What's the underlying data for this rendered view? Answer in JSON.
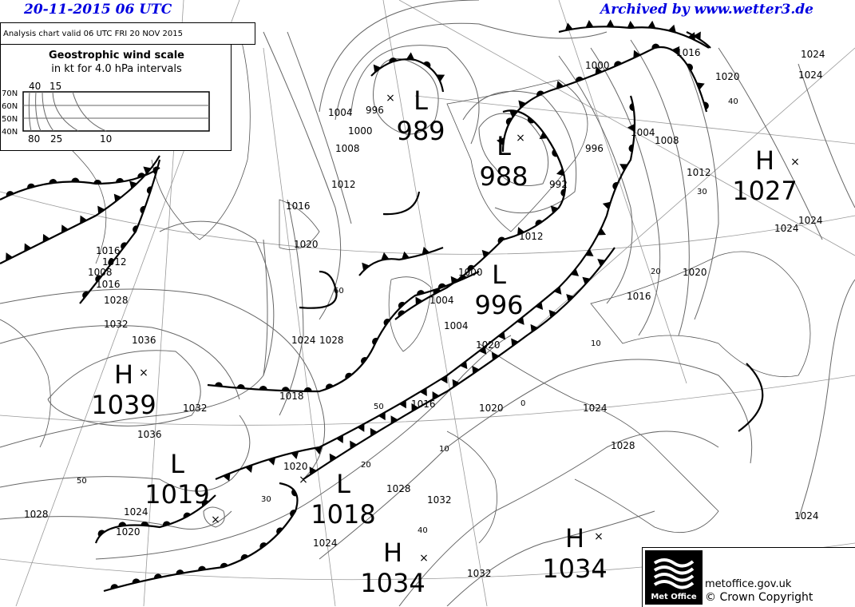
{
  "header": {
    "datetime": "20-11-2015  06 UTC",
    "archive": "Archived by www.wetter3.de",
    "valid_text": "Analysis chart  valid 06 UTC FRI 20  NOV 2015"
  },
  "wind_scale": {
    "title": "Geostrophic wind scale",
    "subtitle": "in kt for 4.0 hPa intervals",
    "lat_labels": [
      "70N",
      "60N",
      "50N",
      "40N"
    ],
    "top_labels": [
      "40",
      "15"
    ],
    "bottom_labels": [
      "80",
      "25",
      "10"
    ]
  },
  "pressure_centres": [
    {
      "type": "L",
      "value": "989"
    },
    {
      "type": "L",
      "value": "988"
    },
    {
      "type": "H",
      "value": "1027"
    },
    {
      "type": "L",
      "value": "996"
    },
    {
      "type": "H",
      "value": "1039"
    },
    {
      "type": "L",
      "value": "1019"
    },
    {
      "type": "L",
      "value": "1018"
    },
    {
      "type": "H",
      "value": "1034"
    },
    {
      "type": "H",
      "value": "1034"
    }
  ],
  "isobar_labels": [
    "1000",
    "1004",
    "1008",
    "1012",
    "1016",
    "1020",
    "1024",
    "1016",
    "1020",
    "1024",
    "996",
    "1000",
    "1004",
    "1008",
    "1012",
    "996",
    "992",
    "1012",
    "1016",
    "1020",
    "1024",
    "1028",
    "1032",
    "1036",
    "1036",
    "1032",
    "1028",
    "1024",
    "1020",
    "1018",
    "1016",
    "1020",
    "1024",
    "1028",
    "1032",
    "1032",
    "1028",
    "1024",
    "1024",
    "1020",
    "1016",
    "1012",
    "1008",
    "1004",
    "1004",
    "1000",
    "1020",
    "1016",
    "1028",
    "1024",
    "1024"
  ],
  "lat_labels": [
    "40",
    "30",
    "20",
    "10",
    "0",
    "60",
    "50",
    "40",
    "30",
    "20",
    "10",
    "50"
  ],
  "colors": {
    "header": "#0000e0",
    "isobar": "#666666",
    "front": "#000000"
  },
  "footer": {
    "logo_text": "Met Office",
    "site": "metoffice.gov.uk",
    "copyright": "© Crown Copyright"
  }
}
